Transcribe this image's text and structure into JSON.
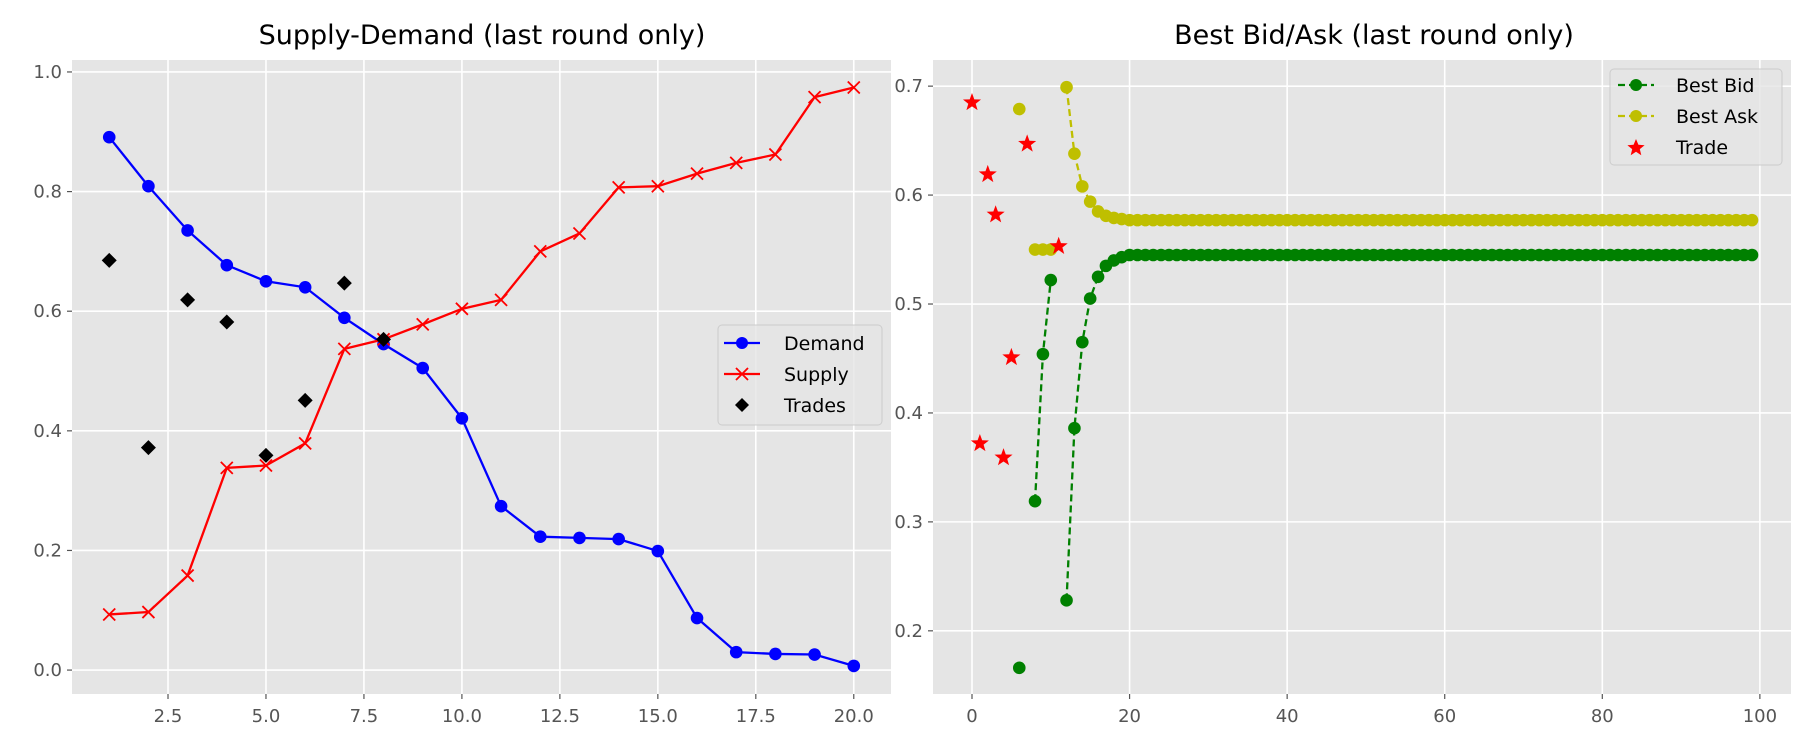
{
  "chart_data": [
    {
      "type": "line",
      "title": "Supply-Demand (last round only)",
      "xlabel": "",
      "ylabel": "",
      "xlim": [
        0.05,
        20.95
      ],
      "ylim": [
        -0.04,
        1.02
      ],
      "x_ticks": [
        2.5,
        5.0,
        7.5,
        10.0,
        12.5,
        15.0,
        17.5,
        20.0
      ],
      "x_tick_labels": [
        "2.5",
        "5.0",
        "7.5",
        "10.0",
        "12.5",
        "15.0",
        "17.5",
        "20.0"
      ],
      "y_ticks": [
        0.0,
        0.2,
        0.4,
        0.6,
        0.8,
        1.0
      ],
      "y_tick_labels": [
        "0.0",
        "0.2",
        "0.4",
        "0.6",
        "0.8",
        "1.0"
      ],
      "grid": true,
      "legend_position": "center-right",
      "series": [
        {
          "name": "Demand",
          "color": "#0000ff",
          "marker": "circle",
          "line": "solid",
          "x": [
            1,
            2,
            3,
            4,
            5,
            6,
            7,
            8,
            9,
            10,
            11,
            12,
            13,
            14,
            15,
            16,
            17,
            18,
            19,
            20
          ],
          "y": [
            0.891,
            0.809,
            0.735,
            0.677,
            0.65,
            0.64,
            0.589,
            0.545,
            0.505,
            0.421,
            0.274,
            0.223,
            0.221,
            0.219,
            0.199,
            0.087,
            0.03,
            0.027,
            0.026,
            0.007
          ]
        },
        {
          "name": "Supply",
          "color": "#ff0000",
          "marker": "x",
          "line": "solid",
          "x": [
            1,
            2,
            3,
            4,
            5,
            6,
            7,
            8,
            9,
            10,
            11,
            12,
            13,
            14,
            15,
            16,
            17,
            18,
            19,
            20
          ],
          "y": [
            0.093,
            0.097,
            0.158,
            0.338,
            0.342,
            0.379,
            0.537,
            0.553,
            0.578,
            0.604,
            0.619,
            0.7,
            0.73,
            0.807,
            0.809,
            0.83,
            0.848,
            0.862,
            0.958,
            0.974
          ]
        },
        {
          "name": "Trades",
          "color": "#000000",
          "marker": "diamond",
          "line": "none",
          "x": [
            1,
            2,
            3,
            4,
            5,
            6,
            7,
            8
          ],
          "y": [
            0.685,
            0.372,
            0.619,
            0.582,
            0.359,
            0.451,
            0.647,
            0.553
          ]
        }
      ]
    },
    {
      "type": "line",
      "title": "Best Bid/Ask (last round only)",
      "xlabel": "",
      "ylabel": "",
      "xlim": [
        -4.95,
        103.95
      ],
      "ylim": [
        0.142,
        0.724
      ],
      "x_ticks": [
        0,
        20,
        40,
        60,
        80,
        100
      ],
      "x_tick_labels": [
        "0",
        "20",
        "40",
        "60",
        "80",
        "100"
      ],
      "y_ticks": [
        0.2,
        0.3,
        0.4,
        0.5,
        0.6,
        0.7
      ],
      "y_tick_labels": [
        "0.2",
        "0.3",
        "0.4",
        "0.5",
        "0.6",
        "0.7"
      ],
      "grid": true,
      "legend_position": "top-right",
      "series": [
        {
          "name": "Best Bid",
          "color": "#008000",
          "marker": "circle",
          "line": "dashed",
          "segments": [
            {
              "x": [
                6
              ],
              "y": [
                0.166
              ]
            },
            {
              "x": [
                8,
                9,
                10
              ],
              "y": [
                0.319,
                0.454,
                0.522
              ]
            },
            {
              "x": [
                12,
                13,
                14,
                15,
                16,
                17,
                18,
                19,
                20
              ],
              "y": [
                0.228,
                0.386,
                0.465,
                0.505,
                0.525,
                0.535,
                0.54,
                0.543,
                0.545
              ]
            }
          ],
          "steady": {
            "from": 21,
            "to": 99,
            "y": 0.545
          }
        },
        {
          "name": "Best Ask",
          "color": "#bfbf00",
          "marker": "circle",
          "line": "dashed",
          "segments": [
            {
              "x": [
                6
              ],
              "y": [
                0.679
              ]
            },
            {
              "x": [
                8,
                9,
                10
              ],
              "y": [
                0.55,
                0.55,
                0.55
              ]
            },
            {
              "x": [
                12,
                13,
                14,
                15,
                16,
                17,
                18,
                19,
                20
              ],
              "y": [
                0.699,
                0.638,
                0.608,
                0.594,
                0.585,
                0.581,
                0.579,
                0.578,
                0.577
              ]
            }
          ],
          "steady": {
            "from": 21,
            "to": 99,
            "y": 0.577
          }
        },
        {
          "name": "Trade",
          "color": "#ff0000",
          "marker": "star",
          "line": "none",
          "x": [
            0,
            1,
            2,
            3,
            4,
            5,
            7,
            11
          ],
          "y": [
            0.685,
            0.372,
            0.619,
            0.582,
            0.359,
            0.451,
            0.647,
            0.553
          ]
        }
      ]
    }
  ]
}
